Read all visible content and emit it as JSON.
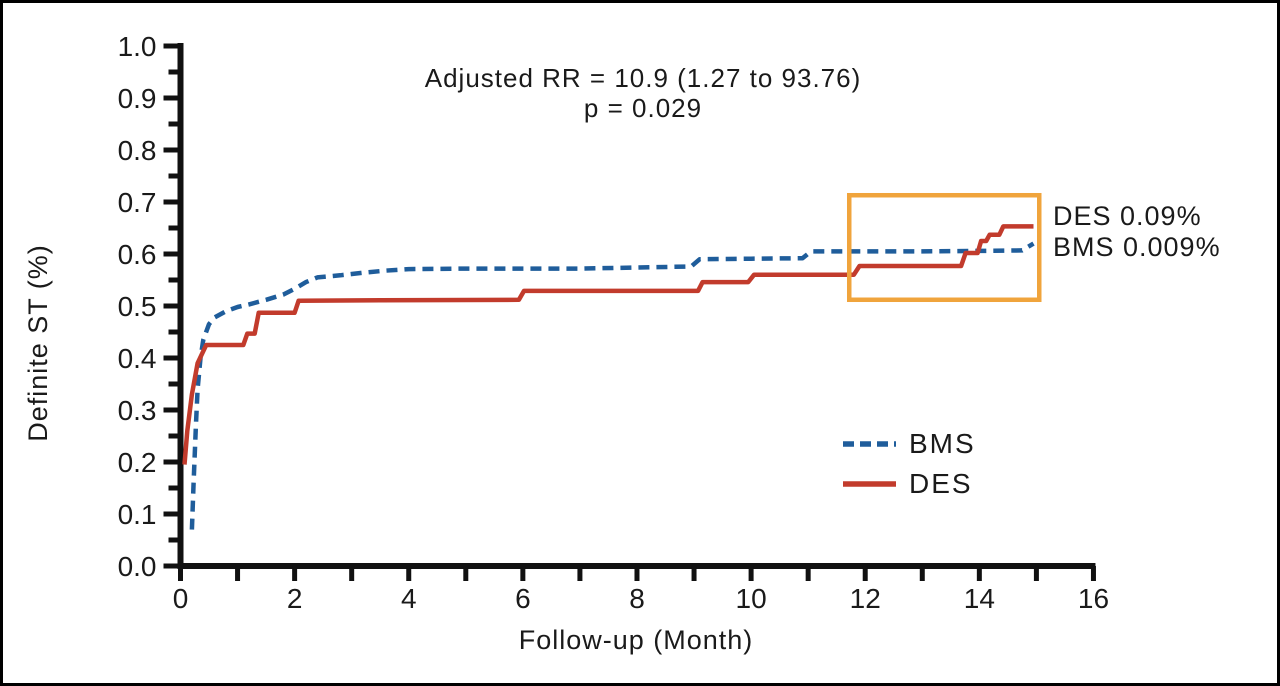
{
  "chart_data": {
    "type": "line",
    "title": "",
    "xlabel": "Follow-up (Month)",
    "ylabel": "Definite ST (%)",
    "xlim": [
      0,
      16
    ],
    "ylim": [
      0.0,
      1.0
    ],
    "x_major_ticks": [
      0,
      2,
      4,
      6,
      8,
      10,
      12,
      14,
      16
    ],
    "x_minor_ticks": [
      1,
      3,
      5,
      7,
      9,
      11,
      13,
      15
    ],
    "y_major_ticks": [
      0.0,
      0.1,
      0.2,
      0.3,
      0.4,
      0.5,
      0.6,
      0.7,
      0.8,
      0.9,
      1.0
    ],
    "y_minor_ticks": [
      0.05,
      0.15,
      0.25,
      0.35,
      0.45,
      0.55,
      0.65,
      0.75,
      0.85,
      0.95
    ],
    "grid": false,
    "legend_position": "lower-right",
    "annotation": {
      "line1": "Adjusted RR = 10.9 (1.27 to 93.76)",
      "line2": "p = 0.029"
    },
    "series": [
      {
        "name": "BMS",
        "color": "#1f5d9b",
        "style": "dashed",
        "points": [
          [
            0.2,
            0.07
          ],
          [
            0.23,
            0.16
          ],
          [
            0.27,
            0.27
          ],
          [
            0.3,
            0.34
          ],
          [
            0.35,
            0.4
          ],
          [
            0.4,
            0.435
          ],
          [
            0.5,
            0.465
          ],
          [
            0.6,
            0.478
          ],
          [
            0.8,
            0.49
          ],
          [
            1.0,
            0.498
          ],
          [
            1.2,
            0.503
          ],
          [
            1.5,
            0.512
          ],
          [
            1.8,
            0.522
          ],
          [
            2.0,
            0.533
          ],
          [
            2.2,
            0.546
          ],
          [
            2.4,
            0.555
          ],
          [
            2.8,
            0.559
          ],
          [
            3.2,
            0.564
          ],
          [
            3.6,
            0.568
          ],
          [
            4.0,
            0.571
          ],
          [
            5.0,
            0.572
          ],
          [
            6.0,
            0.572
          ],
          [
            7.0,
            0.572
          ],
          [
            8.0,
            0.574
          ],
          [
            8.95,
            0.576
          ],
          [
            9.1,
            0.59
          ],
          [
            10.0,
            0.591
          ],
          [
            10.9,
            0.592
          ],
          [
            11.05,
            0.605
          ],
          [
            12.0,
            0.605
          ],
          [
            13.0,
            0.605
          ],
          [
            14.0,
            0.606
          ],
          [
            14.75,
            0.607
          ],
          [
            14.95,
            0.62
          ]
        ]
      },
      {
        "name": "DES",
        "color": "#c23b2c",
        "style": "solid",
        "points": [
          [
            0.07,
            0.195
          ],
          [
            0.12,
            0.26
          ],
          [
            0.2,
            0.33
          ],
          [
            0.3,
            0.39
          ],
          [
            0.45,
            0.425
          ],
          [
            1.1,
            0.425
          ],
          [
            1.17,
            0.447
          ],
          [
            1.3,
            0.447
          ],
          [
            1.37,
            0.487
          ],
          [
            2.0,
            0.487
          ],
          [
            2.07,
            0.51
          ],
          [
            3.5,
            0.511
          ],
          [
            5.93,
            0.512
          ],
          [
            6.02,
            0.529
          ],
          [
            9.07,
            0.529
          ],
          [
            9.15,
            0.546
          ],
          [
            9.95,
            0.546
          ],
          [
            10.05,
            0.56
          ],
          [
            11.8,
            0.56
          ],
          [
            11.9,
            0.577
          ],
          [
            13.68,
            0.577
          ],
          [
            13.76,
            0.602
          ],
          [
            13.97,
            0.602
          ],
          [
            14.03,
            0.625
          ],
          [
            14.12,
            0.625
          ],
          [
            14.18,
            0.637
          ],
          [
            14.35,
            0.637
          ],
          [
            14.42,
            0.653
          ],
          [
            14.95,
            0.653
          ]
        ]
      }
    ],
    "highlight_box": {
      "x0": 11.72,
      "x1": 15.05,
      "y0": 0.512,
      "y1": 0.713,
      "color": "#f0a43c"
    },
    "endpoint_labels": [
      {
        "text": "DES 0.09%"
      },
      {
        "text": "BMS 0.009%"
      }
    ],
    "colors": {
      "axis": "#111111",
      "text": "#1a1a1a"
    }
  }
}
